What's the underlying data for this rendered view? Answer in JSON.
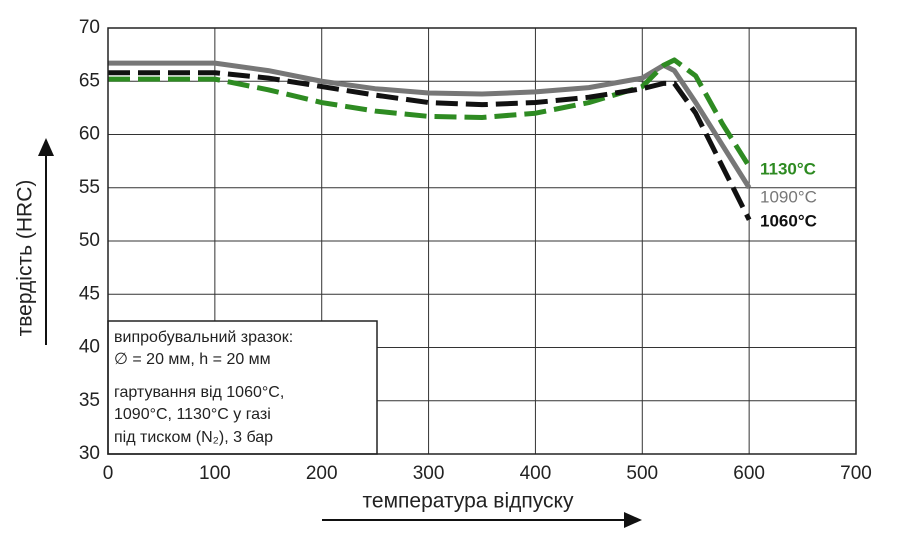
{
  "chart_data": {
    "type": "line",
    "xlabel": "температура відпуску",
    "ylabel": "твердість (HRC)",
    "annotations": [
      "випробувальний зразок:",
      "∅ = 20 мм, h = 20 мм",
      "гартування від 1060°C,",
      "1090°C, 1130°C у газі",
      "під тиском (N₂), 3 бар"
    ],
    "x": [
      0,
      100,
      150,
      200,
      250,
      300,
      350,
      400,
      450,
      500,
      520,
      530,
      550,
      575,
      600
    ],
    "series": [
      {
        "name": "1130°C",
        "color": "#2e8b22",
        "dash": true,
        "values": [
          65.2,
          65.2,
          64.2,
          63,
          62.2,
          61.7,
          61.6,
          62,
          63,
          64.5,
          66.5,
          67,
          65.5,
          61,
          57
        ]
      },
      {
        "name": "1090°C",
        "color": "#777777",
        "dash": false,
        "values": [
          66.7,
          66.7,
          66,
          65,
          64.3,
          63.9,
          63.8,
          64,
          64.4,
          65.3,
          66.5,
          66,
          63,
          59,
          55
        ]
      },
      {
        "name": "1060°C",
        "color": "#111111",
        "dash": true,
        "values": [
          65.8,
          65.8,
          65.3,
          64.5,
          63.7,
          63,
          62.8,
          63,
          63.5,
          64.3,
          64.8,
          64.8,
          62,
          57,
          52
        ]
      }
    ],
    "xlim": [
      0,
      700
    ],
    "xticks": [
      0,
      100,
      200,
      300,
      400,
      500,
      600,
      700
    ],
    "ylim": [
      30,
      70
    ],
    "yticks": [
      30,
      35,
      40,
      45,
      50,
      55,
      60,
      65,
      70
    ],
    "grid": true
  }
}
